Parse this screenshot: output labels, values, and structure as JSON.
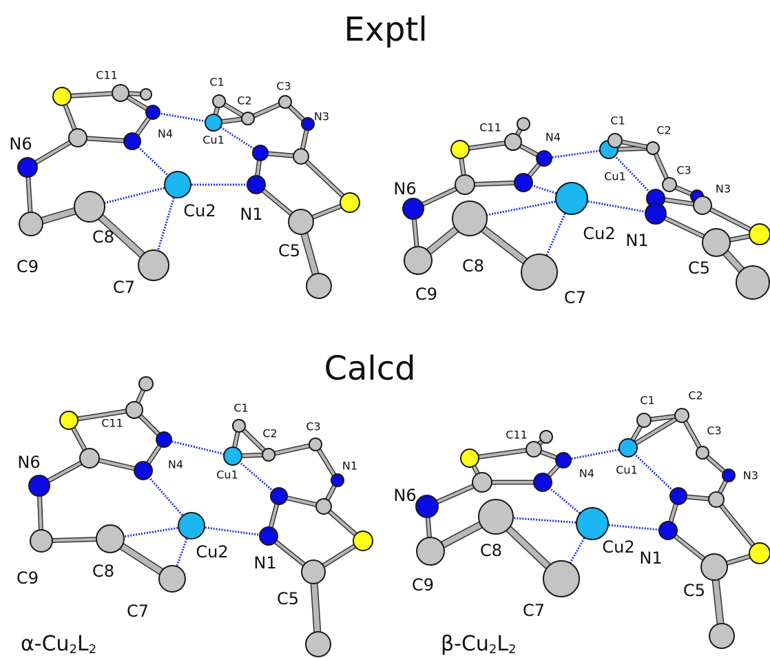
{
  "titles": [
    "Exptl",
    "Calcd"
  ],
  "panels": [
    {
      "labels": [
        "C11",
        "C1",
        "C2",
        "C3",
        "N3",
        "N4",
        "Cu1",
        "N6",
        "Cu2",
        "N1",
        "C5",
        "C9",
        "C8",
        "C7"
      ]
    },
    {
      "labels": [
        "C11",
        "C1",
        "C2",
        "C3",
        "N3",
        "N4",
        "Cu1",
        "N6",
        "Cu2",
        "N1",
        "C5",
        "C9",
        "C8",
        "C7"
      ]
    },
    {
      "labels": [
        "C11",
        "C1",
        "C2",
        "C3",
        "N1",
        "N4",
        "Cu1",
        "N6",
        "Cu2",
        "N1",
        "C5",
        "C9",
        "C8",
        "C7"
      ],
      "caption": {
        "lead": "α-Cu",
        "sub1": "2",
        "mid": "L",
        "sub2": "2"
      }
    },
    {
      "labels": [
        "C11",
        "C1",
        "C2",
        "C3",
        "N3",
        "N4",
        "Cu1",
        "N6",
        "Cu2",
        "N1",
        "C5",
        "C9",
        "C8",
        "C7"
      ],
      "caption": {
        "lead": "β-Cu",
        "sub1": "2",
        "mid": "L",
        "sub2": "2"
      }
    }
  ]
}
